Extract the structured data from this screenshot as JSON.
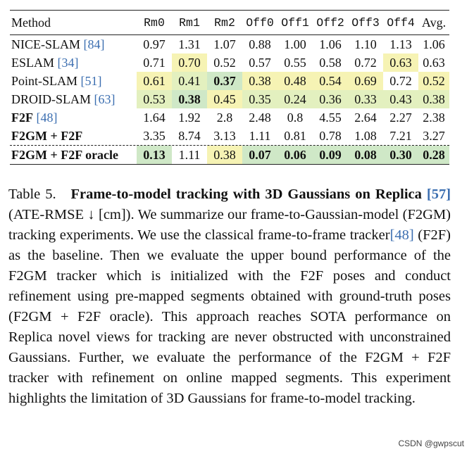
{
  "table": {
    "headers": [
      "Method",
      "Rm0",
      "Rm1",
      "Rm2",
      "Off0",
      "Off1",
      "Off2",
      "Off3",
      "Off4",
      "Avg."
    ],
    "colors": {
      "yellow": "#f6f3b4",
      "green": "#cfe8c7",
      "midgreen": "#e3f0bf"
    },
    "rows": [
      {
        "name": "NICE-SLAM",
        "cite": "[84]",
        "bold": false,
        "cells": [
          {
            "v": "0.97"
          },
          {
            "v": "1.31"
          },
          {
            "v": "1.07"
          },
          {
            "v": "0.88"
          },
          {
            "v": "1.00"
          },
          {
            "v": "1.06"
          },
          {
            "v": "1.10"
          },
          {
            "v": "1.13"
          },
          {
            "v": "1.06"
          }
        ]
      },
      {
        "name": "ESLAM",
        "cite": "[34]",
        "bold": false,
        "cells": [
          {
            "v": "0.71"
          },
          {
            "v": "0.70",
            "c": "yellow"
          },
          {
            "v": "0.52"
          },
          {
            "v": "0.57"
          },
          {
            "v": "0.55"
          },
          {
            "v": "0.58"
          },
          {
            "v": "0.72"
          },
          {
            "v": "0.63",
            "c": "yellow"
          },
          {
            "v": "0.63"
          }
        ]
      },
      {
        "name": "Point-SLAM",
        "cite": "[51]",
        "bold": false,
        "cells": [
          {
            "v": "0.61",
            "c": "yellow"
          },
          {
            "v": "0.41",
            "c": "midgreen"
          },
          {
            "v": "0.37",
            "c": "green",
            "b": true
          },
          {
            "v": "0.38",
            "c": "yellow"
          },
          {
            "v": "0.48",
            "c": "yellow"
          },
          {
            "v": "0.54",
            "c": "yellow"
          },
          {
            "v": "0.69",
            "c": "yellow"
          },
          {
            "v": "0.72"
          },
          {
            "v": "0.52",
            "c": "yellow"
          }
        ]
      },
      {
        "name": "DROID-SLAM",
        "cite": "[63]",
        "bold": false,
        "cells": [
          {
            "v": "0.53",
            "c": "midgreen"
          },
          {
            "v": "0.38",
            "c": "green",
            "b": true
          },
          {
            "v": "0.45",
            "c": "yellow"
          },
          {
            "v": "0.35",
            "c": "midgreen"
          },
          {
            "v": "0.24",
            "c": "midgreen"
          },
          {
            "v": "0.36",
            "c": "midgreen"
          },
          {
            "v": "0.33",
            "c": "midgreen"
          },
          {
            "v": "0.43",
            "c": "midgreen"
          },
          {
            "v": "0.38",
            "c": "midgreen"
          }
        ]
      },
      {
        "name": "F2F",
        "cite": "[48]",
        "bold": true,
        "cells": [
          {
            "v": "1.64"
          },
          {
            "v": "1.92"
          },
          {
            "v": "2.8"
          },
          {
            "v": "2.48"
          },
          {
            "v": "0.8"
          },
          {
            "v": "4.55"
          },
          {
            "v": "2.64"
          },
          {
            "v": "2.27"
          },
          {
            "v": "2.38"
          }
        ]
      },
      {
        "name": "F2GM + F2F",
        "cite": "",
        "bold": true,
        "cells": [
          {
            "v": "3.35"
          },
          {
            "v": "8.74"
          },
          {
            "v": "3.13"
          },
          {
            "v": "1.11"
          },
          {
            "v": "0.81"
          },
          {
            "v": "0.78"
          },
          {
            "v": "1.08"
          },
          {
            "v": "7.21"
          },
          {
            "v": "3.27"
          }
        ]
      },
      {
        "name": "F2GM + F2F oracle",
        "cite": "",
        "bold": true,
        "cells": [
          {
            "v": "0.13",
            "c": "green",
            "b": true
          },
          {
            "v": "1.11"
          },
          {
            "v": "0.38",
            "c": "yellow"
          },
          {
            "v": "0.07",
            "c": "green",
            "b": true
          },
          {
            "v": "0.06",
            "c": "green",
            "b": true
          },
          {
            "v": "0.09",
            "c": "green",
            "b": true
          },
          {
            "v": "0.08",
            "c": "green",
            "b": true
          },
          {
            "v": "0.30",
            "c": "green",
            "b": true
          },
          {
            "v": "0.28",
            "c": "green",
            "b": true
          }
        ]
      }
    ]
  },
  "caption": {
    "label": "Table 5.",
    "title_a": "Frame-to-model tracking with 3D Gaussians on Replica",
    "title_cite": "[57]",
    "body_1": " (ATE-RMSE ↓ [cm]).  We summarize our frame-to-Gaussian-model (F2GM) tracking experiments. We use the classical frame-to-frame tracker",
    "body_cite": "[48]",
    "body_2": " (F2F) as the baseline. Then we evaluate the upper bound performance of the F2GM tracker which is initialized with the F2F poses and conduct refinement using pre-mapped segments obtained with ground-truth poses (F2GM + F2F oracle). This approach reaches SOTA performance on Replica novel views for tracking are never obstructed with unconstrained Gaussians.  Further, we evaluate the performance of the F2GM + F2F tracker with refinement on online mapped segments. This experiment highlights the limitation of 3D Gaussians for frame-to-model tracking."
  },
  "watermark": "CSDN @gwpscut"
}
